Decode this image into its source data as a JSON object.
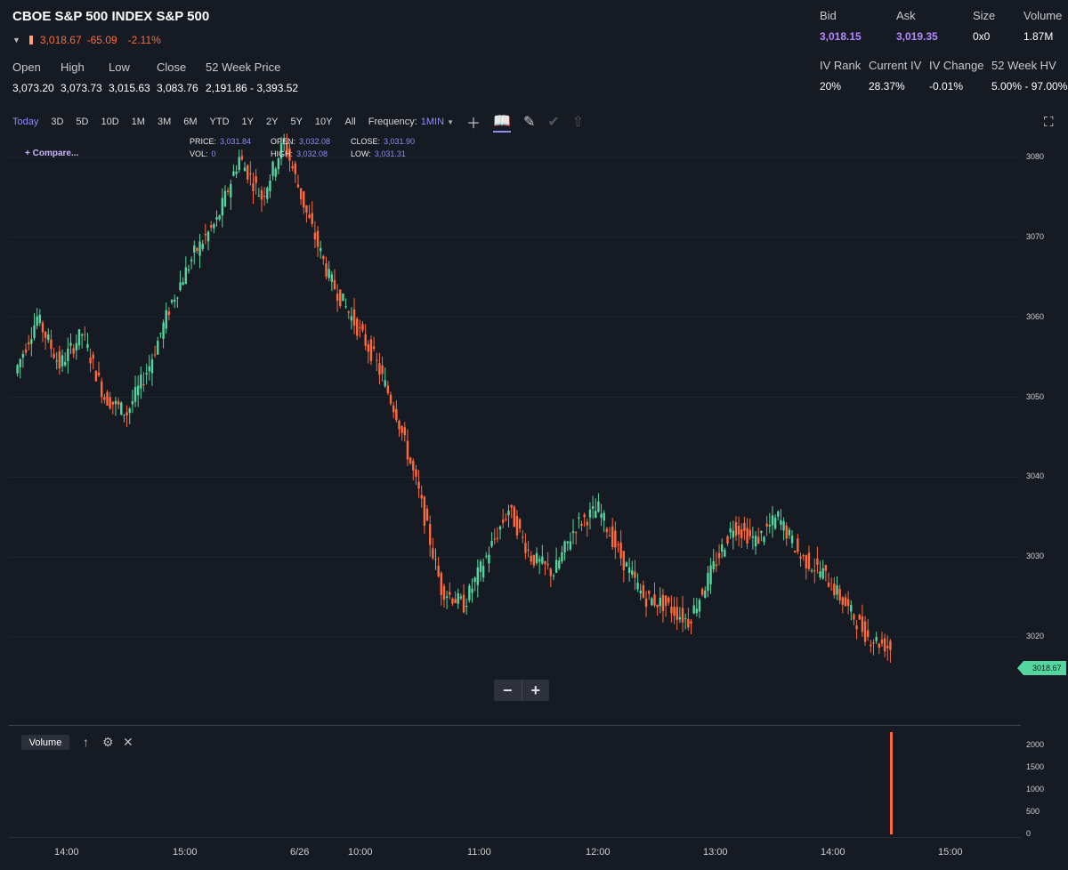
{
  "header": {
    "title": "CBOE S&P 500 INDEX S&P 500",
    "last_price": "3,018.67",
    "change": "-65.09",
    "change_pct": "-2.11%"
  },
  "stats": {
    "open": {
      "label": "Open",
      "value": "3,073.20"
    },
    "high": {
      "label": "High",
      "value": "3,073.73"
    },
    "low": {
      "label": "Low",
      "value": "3,015.63"
    },
    "close": {
      "label": "Close",
      "value": "3,083.76"
    },
    "week52": {
      "label": "52 Week Price",
      "value": "2,191.86 - 3,393.52"
    }
  },
  "quote": {
    "bid": {
      "label": "Bid",
      "value": "3,018.15"
    },
    "ask": {
      "label": "Ask",
      "value": "3,019.35"
    },
    "size": {
      "label": "Size",
      "value": "0x0"
    },
    "volume": {
      "label": "Volume",
      "value": "1.87M"
    },
    "iv_rank": {
      "label": "IV Rank",
      "value": "20%"
    },
    "current_iv": {
      "label": "Current IV",
      "value": "28.37%"
    },
    "iv_change": {
      "label": "IV Change",
      "value": "-0.01%"
    },
    "hv52": {
      "label": "52 Week HV",
      "value": "5.00% - 97.00%"
    }
  },
  "toolbar": {
    "ranges": [
      "Today",
      "3D",
      "5D",
      "10D",
      "1M",
      "3M",
      "6M",
      "YTD",
      "1Y",
      "2Y",
      "5Y",
      "10Y",
      "All"
    ],
    "active_range": "Today",
    "frequency_label": "Frequency:",
    "frequency_value": "1MIN"
  },
  "crosshair": {
    "price_label": "PRICE:",
    "price": "3,031.84",
    "open_label": "OPEN:",
    "open": "3,032.08",
    "close_label": "CLOSE:",
    "close": "3,031.90",
    "vol_label": "VOL:",
    "vol": "0",
    "high_label": "HIGH:",
    "high": "3,032.08",
    "low_label": "LOW:",
    "low": "3,031.31"
  },
  "compare_label": "Compare...",
  "volume_panel": {
    "label": "Volume"
  },
  "last_badge": "3018.67",
  "colors": {
    "up": "#55d6a0",
    "down": "#ff6a3d",
    "accent": "#8f8cf5",
    "background": "#161a22"
  },
  "icons": [
    "crosshair-icon",
    "book-icon",
    "pencil-icon",
    "check-icon",
    "share-icon",
    "fullscreen-icon",
    "arrow-up-icon",
    "gear-icon",
    "close-icon"
  ],
  "chart_data": {
    "type": "candlestick",
    "ylim": [
      3014,
      3083
    ],
    "y_ticks": [
      3020,
      3030,
      3040,
      3050,
      3060,
      3070,
      3080
    ],
    "x_ticks": [
      "14:00",
      "15:00",
      "6/26",
      "10:00",
      "11:00",
      "12:00",
      "13:00",
      "14:00",
      "15:00"
    ],
    "price_path": [
      {
        "t": "13:30",
        "price": 3053
      },
      {
        "t": "13:45",
        "price": 3060
      },
      {
        "t": "14:00",
        "price": 3054
      },
      {
        "t": "14:10",
        "price": 3058
      },
      {
        "t": "14:30",
        "price": 3050
      },
      {
        "t": "14:40",
        "price": 3048
      },
      {
        "t": "14:55",
        "price": 3054
      },
      {
        "t": "15:05",
        "price": 3062
      },
      {
        "t": "15:15",
        "price": 3068
      },
      {
        "t": "15:25",
        "price": 3072
      },
      {
        "t": "15:35",
        "price": 3080
      },
      {
        "t": "15:45",
        "price": 3075
      },
      {
        "t": "15:55",
        "price": 3082
      },
      {
        "t": "6/26 09:30",
        "price": 3073
      },
      {
        "t": "09:45",
        "price": 3065
      },
      {
        "t": "10:00",
        "price": 3060
      },
      {
        "t": "10:10",
        "price": 3055
      },
      {
        "t": "10:20",
        "price": 3048
      },
      {
        "t": "10:30",
        "price": 3038
      },
      {
        "t": "10:40",
        "price": 3026
      },
      {
        "t": "10:50",
        "price": 3024
      },
      {
        "t": "11:00",
        "price": 3030
      },
      {
        "t": "11:10",
        "price": 3036
      },
      {
        "t": "11:20",
        "price": 3030
      },
      {
        "t": "11:30",
        "price": 3028
      },
      {
        "t": "11:45",
        "price": 3034
      },
      {
        "t": "12:00",
        "price": 3036
      },
      {
        "t": "12:10",
        "price": 3030
      },
      {
        "t": "12:20",
        "price": 3025
      },
      {
        "t": "12:30",
        "price": 3024
      },
      {
        "t": "12:45",
        "price": 3022
      },
      {
        "t": "13:00",
        "price": 3028
      },
      {
        "t": "13:10",
        "price": 3034
      },
      {
        "t": "13:20",
        "price": 3032
      },
      {
        "t": "13:35",
        "price": 3035
      },
      {
        "t": "13:50",
        "price": 3030
      },
      {
        "t": "14:05",
        "price": 3028
      },
      {
        "t": "14:15",
        "price": 3024
      },
      {
        "t": "14:25",
        "price": 3020
      },
      {
        "t": "14:30",
        "price": 3018.67
      }
    ],
    "volume": {
      "y_ticks": [
        0,
        500,
        1000,
        1500,
        2000
      ],
      "last_bar": 2300
    }
  }
}
